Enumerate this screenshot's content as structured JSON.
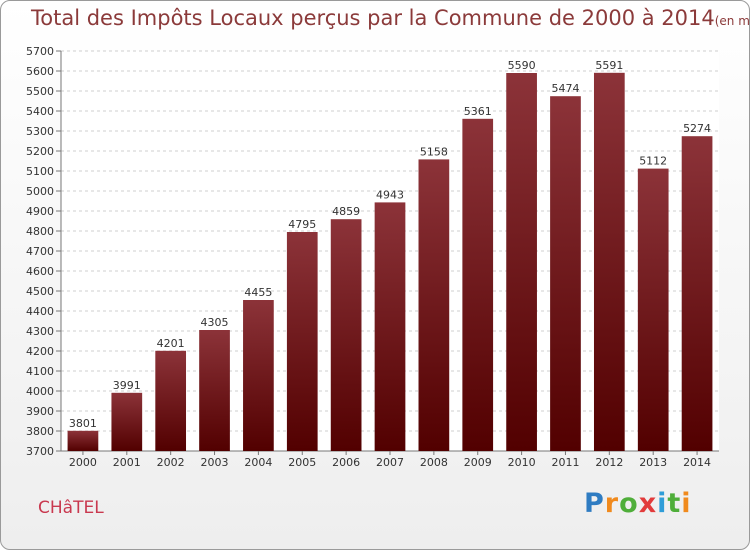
{
  "chart_data": {
    "type": "bar",
    "title": "Total des Impôts Locaux perçus par la Commune de 2000 à 2014",
    "unit_note": "(en milliers d'€)",
    "categories": [
      "2000",
      "2001",
      "2002",
      "2003",
      "2004",
      "2005",
      "2006",
      "2007",
      "2008",
      "2009",
      "2010",
      "2011",
      "2012",
      "2013",
      "2014"
    ],
    "values": [
      3801,
      3991,
      4201,
      4305,
      4455,
      4795,
      4859,
      4943,
      5158,
      5361,
      5590,
      5474,
      5591,
      5112,
      5274
    ],
    "xlabel": "",
    "ylabel": "",
    "ylim": [
      3700,
      5700
    ],
    "ytick_step": 100,
    "grid": true,
    "bar_color_top": "#8c3339",
    "bar_color_bottom": "#520000"
  },
  "footer": {
    "commune": "CHâTEL",
    "logo_text": "Proxiti"
  }
}
